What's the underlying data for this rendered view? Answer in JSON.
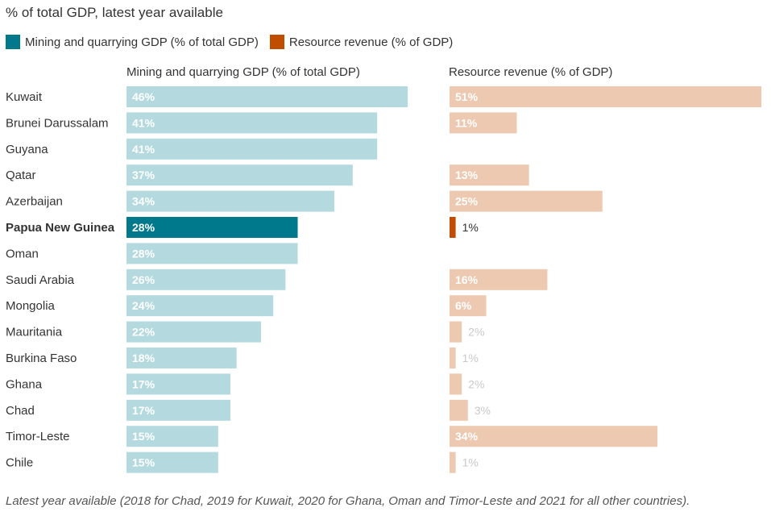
{
  "subtitle": "% of total GDP, latest year available",
  "legend": [
    {
      "label": "Mining and quarrying GDP (% of total GDP)",
      "color": "#00798c"
    },
    {
      "label": "Resource revenue (% of GDP)",
      "color": "#c04d00"
    }
  ],
  "colors": {
    "mining_bar": "#b4dae0",
    "mining_highlight": "#00798c",
    "revenue_bar": "#edc9b1",
    "revenue_highlight": "#c04d00",
    "label_inside": "#ffffff",
    "label_outside_light": "#c9c9c9",
    "label_outside_dark": "#333333"
  },
  "chart_data": {
    "type": "bar",
    "orientation": "horizontal",
    "highlight_category": "Papua New Guinea",
    "categories": [
      "Kuwait",
      "Brunei Darussalam",
      "Guyana",
      "Qatar",
      "Azerbaijan",
      "Papua New Guinea",
      "Oman",
      "Saudi Arabia",
      "Mongolia",
      "Mauritania",
      "Burkina Faso",
      "Ghana",
      "Chad",
      "Timor-Leste",
      "Chile"
    ],
    "series": [
      {
        "name": "Mining and quarrying GDP (% of total GDP)",
        "values": [
          46,
          41,
          41,
          37,
          34,
          28,
          28,
          26,
          24,
          22,
          18,
          17,
          17,
          15,
          15
        ],
        "labels": [
          "46%",
          "41%",
          "41%",
          "37%",
          "34%",
          "28%",
          "28%",
          "26%",
          "24%",
          "22%",
          "18%",
          "17%",
          "17%",
          "15%",
          "15%"
        ]
      },
      {
        "name": "Resource revenue (% of GDP)",
        "values": [
          51,
          11,
          null,
          13,
          25,
          1,
          null,
          16,
          6,
          2,
          1,
          2,
          3,
          34,
          1
        ],
        "labels": [
          "51%",
          "11%",
          "",
          "13%",
          "25%",
          "1%",
          "",
          "16%",
          "6%",
          "2%",
          "1%",
          "2%",
          "3%",
          "34%",
          "1%"
        ]
      }
    ],
    "xlim": [
      0,
      51
    ],
    "legend_position": "top-left",
    "grid": false
  },
  "note": "Latest year available (2018 for Chad, 2019 for Kuwait, 2020 for Ghana, Oman and Timor-Leste and 2021 for all other countries)."
}
